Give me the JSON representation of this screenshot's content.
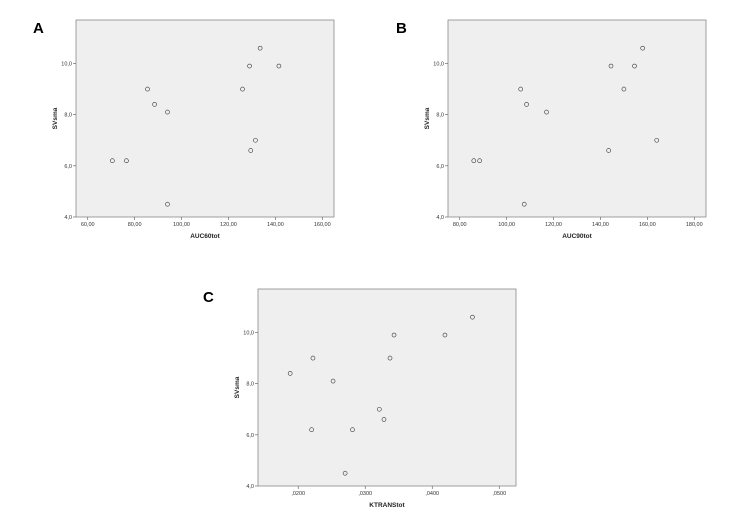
{
  "chart_data": [
    {
      "type": "scatter",
      "panel": "A",
      "xlabel": "AUC60tot",
      "ylabel": "SVsma",
      "xlim": [
        55,
        165
      ],
      "ylim": [
        4.0,
        11.7
      ],
      "xticks": [
        60,
        80,
        100,
        120,
        140,
        160
      ],
      "xtick_labels": [
        "60,00",
        "80,00",
        "100,00",
        "120,00",
        "140,00",
        "160,00"
      ],
      "yticks": [
        4.0,
        6.0,
        8.0,
        10.0
      ],
      "ytick_labels": [
        "4,0",
        "6,0",
        "8,0",
        "10,0"
      ],
      "points": [
        [
          70.5,
          6.2
        ],
        [
          76.5,
          6.2
        ],
        [
          85.5,
          9.0
        ],
        [
          88.5,
          8.4
        ],
        [
          94,
          8.1
        ],
        [
          94,
          4.5
        ],
        [
          126,
          9.0
        ],
        [
          129,
          9.9
        ],
        [
          129.5,
          6.6
        ],
        [
          131.5,
          7.0
        ],
        [
          133.5,
          10.6
        ],
        [
          141.5,
          9.9
        ]
      ]
    },
    {
      "type": "scatter",
      "panel": "B",
      "xlabel": "AUC90tot",
      "ylabel": "SVsma",
      "xlim": [
        75,
        185
      ],
      "ylim": [
        4.0,
        11.7
      ],
      "xticks": [
        80,
        100,
        120,
        140,
        160,
        180
      ],
      "xtick_labels": [
        "80,00",
        "100,00",
        "120,00",
        "140,00",
        "160,00",
        "180,00"
      ],
      "yticks": [
        4.0,
        6.0,
        8.0,
        10.0
      ],
      "ytick_labels": [
        "4,0",
        "6,0",
        "8,0",
        "10,0"
      ],
      "points": [
        [
          86,
          6.2
        ],
        [
          88.5,
          6.2
        ],
        [
          106,
          9.0
        ],
        [
          108.5,
          8.4
        ],
        [
          107.5,
          4.5
        ],
        [
          117,
          8.1
        ],
        [
          143.5,
          6.6
        ],
        [
          144.5,
          9.9
        ],
        [
          150,
          9.0
        ],
        [
          154.5,
          9.9
        ],
        [
          158,
          10.6
        ],
        [
          164,
          7.0
        ]
      ]
    },
    {
      "type": "scatter",
      "panel": "C",
      "xlabel": "KTRANStot",
      "ylabel": "SVsma",
      "xlim": [
        0.014,
        0.0525
      ],
      "ylim": [
        4.0,
        11.7
      ],
      "xticks": [
        0.02,
        0.03,
        0.04,
        0.05
      ],
      "xtick_labels": [
        ",0200",
        ",0300",
        ",0400",
        ",0500"
      ],
      "yticks": [
        4.0,
        6.0,
        8.0,
        10.0
      ],
      "ytick_labels": [
        "4,0",
        "6,0",
        "8,0",
        "10,0"
      ],
      "points": [
        [
          0.0188,
          8.4
        ],
        [
          0.022,
          6.2
        ],
        [
          0.0222,
          9.0
        ],
        [
          0.0252,
          8.1
        ],
        [
          0.027,
          4.5
        ],
        [
          0.0281,
          6.2
        ],
        [
          0.0321,
          7.0
        ],
        [
          0.0328,
          6.6
        ],
        [
          0.0337,
          9.0
        ],
        [
          0.0343,
          9.9
        ],
        [
          0.0419,
          9.9
        ],
        [
          0.046,
          10.6
        ]
      ]
    }
  ]
}
